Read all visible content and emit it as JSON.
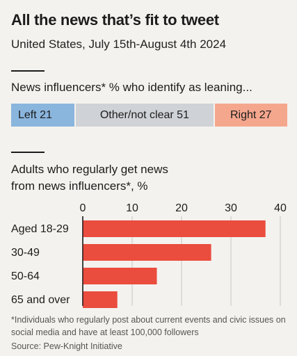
{
  "header": {
    "title": "All the news that’s fit to tweet",
    "subtitle": "United States, July 15th-August 4th 2024"
  },
  "leaning_chart": {
    "title": "News influencers* % who identify as leaning...",
    "segments": [
      {
        "label": "Left",
        "value": 21,
        "color": "#8ab5dd"
      },
      {
        "label": "Other/not clear",
        "value": 51,
        "color": "#cfd2d6"
      },
      {
        "label": "Right",
        "value": 27,
        "color": "#f5a78e"
      }
    ]
  },
  "chart_data": {
    "type": "bar",
    "orientation": "horizontal",
    "title": "Adults who regularly get news from news influencers*, %",
    "title_lines": [
      "Adults who regularly get news",
      "from news influencers*, %"
    ],
    "categories": [
      "Aged 18-29",
      "30-49",
      "50-64",
      "65 and over"
    ],
    "values": [
      37,
      26,
      15,
      7
    ],
    "xlim": [
      0,
      40
    ],
    "xticks": [
      0,
      10,
      20,
      30,
      40
    ],
    "grid": true,
    "bar_color": "#ea4c3e"
  },
  "footnote": {
    "text": "*Individuals who regularly post about current events and civic issues on social media and have at least 100,000 followers",
    "source": "Source: Pew-Knight Initiative"
  }
}
